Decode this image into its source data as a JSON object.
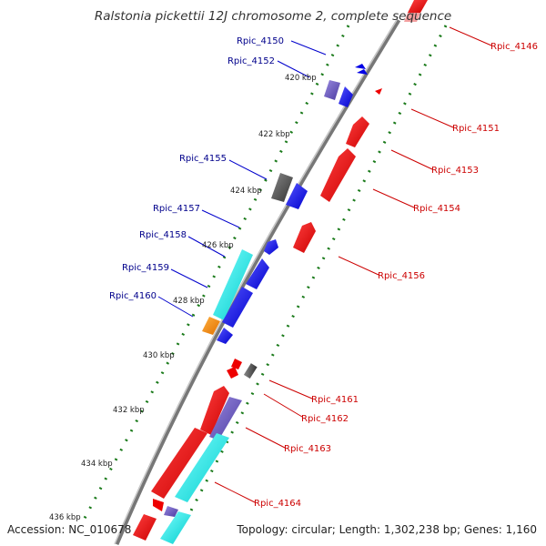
{
  "map": {
    "title": "Ralstonia pickettii 12J chromosome 2, complete sequence",
    "accession": "Accession: NC_010678",
    "summary": "Topology: circular; Length: 1,302,238 bp; Genes: 1,160"
  },
  "ruler": {
    "ticks": [
      "420 kbp",
      "422 kbp",
      "424 kbp",
      "426 kbp",
      "428 kbp",
      "430 kbp",
      "432 kbp",
      "434 kbp",
      "436 kbp"
    ]
  },
  "genes": {
    "forward": [
      "Rpic_4150",
      "Rpic_4152",
      "Rpic_4155",
      "Rpic_4157",
      "Rpic_4158",
      "Rpic_4159",
      "Rpic_4160"
    ],
    "reverse": [
      "Rpic_4146",
      "Rpic_4151",
      "Rpic_4153",
      "Rpic_4154",
      "Rpic_4156",
      "Rpic_4161",
      "Rpic_4162",
      "Rpic_4163",
      "Rpic_4164"
    ]
  },
  "colors": {
    "forward_label": "#00008b",
    "reverse_label": "#cc0000",
    "cds_blue": "#0000e6",
    "cds_red": "#ee0000",
    "cds_cyan": "#00e5e5",
    "cds_purple": "#6a5acd",
    "cds_grey": "#555555",
    "cds_orange": "#ff8c00",
    "backbone": "#777777",
    "tick_green": "#1a7a1a"
  }
}
